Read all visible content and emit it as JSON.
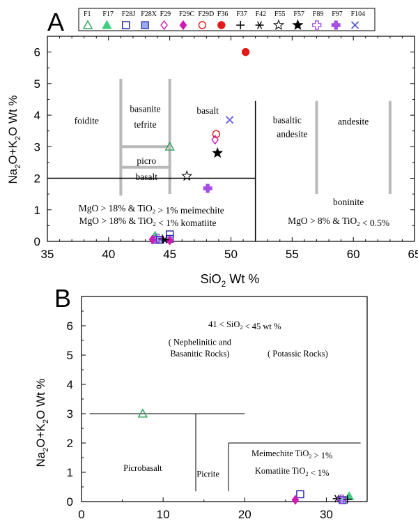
{
  "chart_data": [
    {
      "type": "scatter",
      "panel_label": "A",
      "xlabel": "SiO2 Wt %",
      "ylabel": "Na2O+K2O Wt %",
      "xlim": [
        35,
        65
      ],
      "ylim": [
        0,
        6.5
      ],
      "xticks": [
        35,
        40,
        45,
        50,
        55,
        60,
        65
      ],
      "yticks": [
        0,
        1,
        2,
        3,
        4,
        5,
        6
      ],
      "legend_position": "top",
      "legend": [
        {
          "name": "F1",
          "marker": "triangle-open",
          "color": "#2e9d59"
        },
        {
          "name": "F17",
          "marker": "triangle-filled",
          "color": "#3fcf83"
        },
        {
          "name": "F28J",
          "marker": "square-open",
          "color": "#1f1fa5"
        },
        {
          "name": "F28X",
          "marker": "square-filled",
          "color": "#9aa7f2"
        },
        {
          "name": "F29",
          "marker": "diamond-open",
          "color": "#d21ab3"
        },
        {
          "name": "F29C",
          "marker": "diamond-filled",
          "color": "#d21ab3"
        },
        {
          "name": "F29D",
          "marker": "circle-open",
          "color": "#e31a1a"
        },
        {
          "name": "F36",
          "marker": "circle-filled",
          "color": "#e31a1a"
        },
        {
          "name": "F37",
          "marker": "plus",
          "color": "#000000"
        },
        {
          "name": "F42",
          "marker": "asterisk",
          "color": "#000000"
        },
        {
          "name": "F55",
          "marker": "star-open",
          "color": "#000000"
        },
        {
          "name": "F57",
          "marker": "star-filled",
          "color": "#000000"
        },
        {
          "name": "F89",
          "marker": "cross-open",
          "color": "#9b34d6"
        },
        {
          "name": "F97",
          "marker": "cross-filled",
          "color": "#a64ce0"
        },
        {
          "name": "F104",
          "marker": "x",
          "color": "#5a5ad0"
        }
      ],
      "field_labels": [
        {
          "text": "foidite",
          "x": 38.2,
          "y": 3.72
        },
        {
          "text": "basanite",
          "x": 43.0,
          "y": 4.1
        },
        {
          "text": "tefrite",
          "x": 43.0,
          "y": 3.6
        },
        {
          "text": "basalt",
          "x": 48.1,
          "y": 4.05
        },
        {
          "text": "picro",
          "x": 43.1,
          "y": 2.45
        },
        {
          "text": "basalt",
          "x": 43.1,
          "y": 1.95
        },
        {
          "text": "basaltic",
          "x": 54.6,
          "y": 3.75
        },
        {
          "text": "andesite",
          "x": 55.0,
          "y": 3.3
        },
        {
          "text": "andesite",
          "x": 60.0,
          "y": 3.7
        },
        {
          "text": "boninite",
          "x": 59.6,
          "y": 1.15
        },
        {
          "text": "MgO > 18% & TiO2 > 1% meimechite",
          "x": 43.5,
          "y": 0.95
        },
        {
          "text": "MgO > 18% & TiO2 < 1% komatiite",
          "x": 43.2,
          "y": 0.55
        },
        {
          "text": "MgO > 8% & TiO2 < 0.5%",
          "x": 58.8,
          "y": 0.55
        }
      ],
      "series": [
        {
          "name": "F1",
          "points": [
            [
              45.0,
              3.0
            ]
          ]
        },
        {
          "name": "F17",
          "points": [
            [
              43.8,
              0.18
            ]
          ]
        },
        {
          "name": "F28J",
          "points": [
            [
              45.0,
              0.22
            ]
          ]
        },
        {
          "name": "F28X",
          "points": [
            [
              43.8,
              0.05
            ],
            [
              44.2,
              0.05
            ],
            [
              45.0,
              0.08
            ]
          ]
        },
        {
          "name": "F29",
          "points": [
            [
              48.7,
              3.22
            ]
          ]
        },
        {
          "name": "F29C",
          "points": [
            [
              43.6,
              0.06
            ],
            [
              45.0,
              0.03
            ]
          ]
        },
        {
          "name": "F29D",
          "points": [
            [
              48.8,
              3.4
            ]
          ]
        },
        {
          "name": "F36",
          "points": [
            [
              51.2,
              6.0
            ]
          ]
        },
        {
          "name": "F37",
          "points": [
            [
              44.4,
              0.08
            ]
          ]
        },
        {
          "name": "F42",
          "points": [
            [
              44.6,
              0.05
            ]
          ]
        },
        {
          "name": "F55",
          "points": [
            [
              46.4,
              2.07
            ]
          ]
        },
        {
          "name": "F57",
          "points": [
            [
              48.9,
              2.8
            ]
          ]
        },
        {
          "name": "F89",
          "points": [
            [
              44.0,
              0.1
            ]
          ]
        },
        {
          "name": "F97",
          "points": [
            [
              48.1,
              1.68
            ]
          ]
        },
        {
          "name": "F104",
          "points": [
            [
              49.9,
              3.85
            ]
          ]
        }
      ]
    },
    {
      "type": "scatter",
      "panel_label": "B",
      "xlabel": "",
      "ylabel": "Na2O+K2O Wt %",
      "xlim": [
        0,
        35
      ],
      "ylim": [
        0,
        7
      ],
      "xticks": [
        0,
        10,
        20,
        30
      ],
      "yticks": [
        0,
        1,
        2,
        3,
        4,
        5,
        6
      ],
      "field_labels": [
        {
          "text": "41 < SiO2 < 45 wt %",
          "x": 20.0,
          "y": 5.95
        },
        {
          "text": "( Nephelinitic and",
          "x": 14.5,
          "y": 5.35
        },
        {
          "text": "Basanitic Rocks)",
          "x": 14.5,
          "y": 4.95
        },
        {
          "text": "( Potassic Rocks)",
          "x": 26.5,
          "y": 4.95
        },
        {
          "text": "Picrobasalt",
          "x": 7.5,
          "y": 1.05
        },
        {
          "text": "Picrite",
          "x": 15.5,
          "y": 0.85
        },
        {
          "text": "Meimechite  TiO2 > 1%",
          "x": 25.8,
          "y": 1.55
        },
        {
          "text": "Komatiite  TiO2 < 1%",
          "x": 25.8,
          "y": 0.95
        }
      ],
      "series": [
        {
          "name": "F1",
          "points": [
            [
              7.5,
              3.0
            ]
          ]
        },
        {
          "name": "F17",
          "points": [
            [
              32.8,
              0.18
            ]
          ]
        },
        {
          "name": "F28J",
          "points": [
            [
              26.8,
              0.25
            ]
          ]
        },
        {
          "name": "F28X",
          "points": [
            [
              32.0,
              0.05
            ]
          ]
        },
        {
          "name": "F29C",
          "points": [
            [
              26.2,
              0.06
            ]
          ]
        },
        {
          "name": "F37",
          "points": [
            [
              32.6,
              0.08
            ]
          ]
        },
        {
          "name": "F42",
          "points": [
            [
              31.3,
              0.1
            ]
          ]
        },
        {
          "name": "F89",
          "points": [
            [
              31.9,
              0.08
            ]
          ]
        }
      ]
    }
  ]
}
